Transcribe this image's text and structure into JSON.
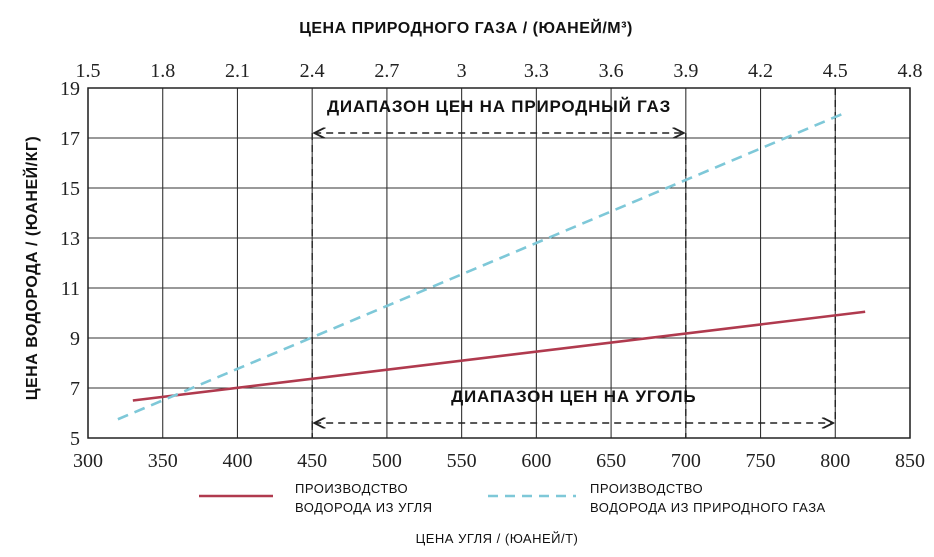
{
  "chart_data": {
    "type": "line",
    "title": "ЦЕНА ПРИРОДНОГО ГАЗА / (ЮАНЕЙ/М³)",
    "xlabel": "ЦЕНА УГЛЯ / (ЮАНЕЙ/Т)",
    "ylabel": "ЦЕНА ВОДОРОДА / (ЮАНЕЙ/КГ)",
    "xlim": [
      300,
      850
    ],
    "ylim": [
      5,
      19
    ],
    "x_ticks": [
      300,
      350,
      400,
      450,
      500,
      550,
      600,
      650,
      700,
      750,
      800,
      850
    ],
    "y_ticks": [
      5,
      7,
      9,
      11,
      13,
      15,
      17,
      19
    ],
    "top_axis": {
      "label": "ЦЕНА ПРИРОДНОГО ГАЗА / (ЮАНЕЙ/М³)",
      "lim": [
        1.5,
        4.8
      ],
      "ticks": [
        "1.5",
        "1.8",
        "2.1",
        "2.4",
        "2.7",
        "3",
        "3.3",
        "3.6",
        "3.9",
        "4.2",
        "4.5",
        "4.8"
      ]
    },
    "grid": true,
    "legend_position": "bottom",
    "series": [
      {
        "name": "ПРОИЗВОДСТВО\nВОДОРОДА ИЗ УГЛЯ",
        "axis": "bottom",
        "style": "solid",
        "color": "#b03a4e",
        "points": [
          [
            330,
            6.5
          ],
          [
            820,
            10.05
          ]
        ]
      },
      {
        "name": "ПРОИЗВОДСТВО\nВОДОРОДА ИЗ ПРИРОДНОГО ГАЗА",
        "axis": "top",
        "style": "dashed",
        "color": "#7ec8d8",
        "points": [
          [
            1.62,
            5.75
          ],
          [
            4.55,
            18.05
          ]
        ]
      }
    ],
    "annotations": [
      {
        "text": "ДИАПАЗОН ЦЕН НА ПРИРОДНЫЙ ГАЗ",
        "axis": "top",
        "from": 2.4,
        "to": 3.9,
        "y": 17.2
      },
      {
        "text": "ДИАПАЗОН ЦЕН НА УГОЛЬ",
        "axis": "bottom",
        "from": 450,
        "to": 800,
        "y": 5.6
      }
    ]
  },
  "legend": {
    "coal_line1": "ПРОИЗВОДСТВО",
    "coal_line2": "ВОДОРОДА ИЗ УГЛЯ",
    "gas_line1": "ПРОИЗВОДСТВО",
    "gas_line2": "ВОДОРОДА ИЗ ПРИРОДНОГО ГАЗА"
  }
}
